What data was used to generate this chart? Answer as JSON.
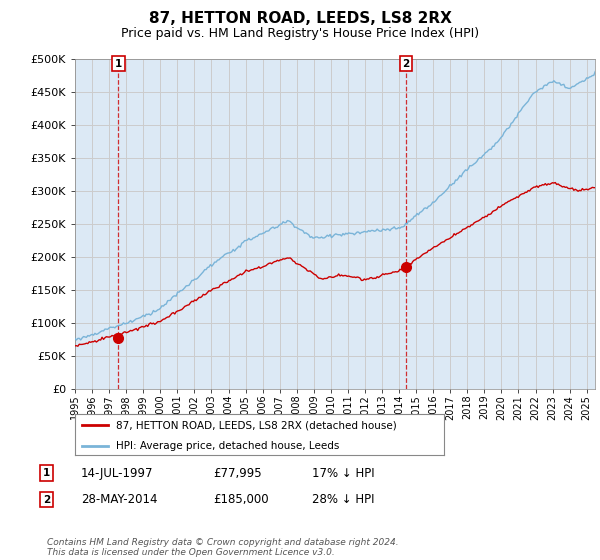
{
  "title": "87, HETTON ROAD, LEEDS, LS8 2RX",
  "subtitle": "Price paid vs. HM Land Registry's House Price Index (HPI)",
  "ylim": [
    0,
    500000
  ],
  "xlim_start": 1995.0,
  "xlim_end": 2025.5,
  "sale1_date": 1997.54,
  "sale1_price": 77995,
  "sale2_date": 2014.41,
  "sale2_price": 185000,
  "legend_line1": "87, HETTON ROAD, LEEDS, LS8 2RX (detached house)",
  "legend_line2": "HPI: Average price, detached house, Leeds",
  "ann1_date": "14-JUL-1997",
  "ann1_price": "£77,995",
  "ann1_hpi": "17% ↓ HPI",
  "ann2_date": "28-MAY-2014",
  "ann2_price": "£185,000",
  "ann2_hpi": "28% ↓ HPI",
  "footer": "Contains HM Land Registry data © Crown copyright and database right 2024.\nThis data is licensed under the Open Government Licence v3.0.",
  "hpi_color": "#7ab4d8",
  "price_color": "#cc0000",
  "grid_color": "#cccccc",
  "bg_color": "#ffffff",
  "chart_bg": "#dce9f5",
  "marker_box_color": "#cc0000"
}
